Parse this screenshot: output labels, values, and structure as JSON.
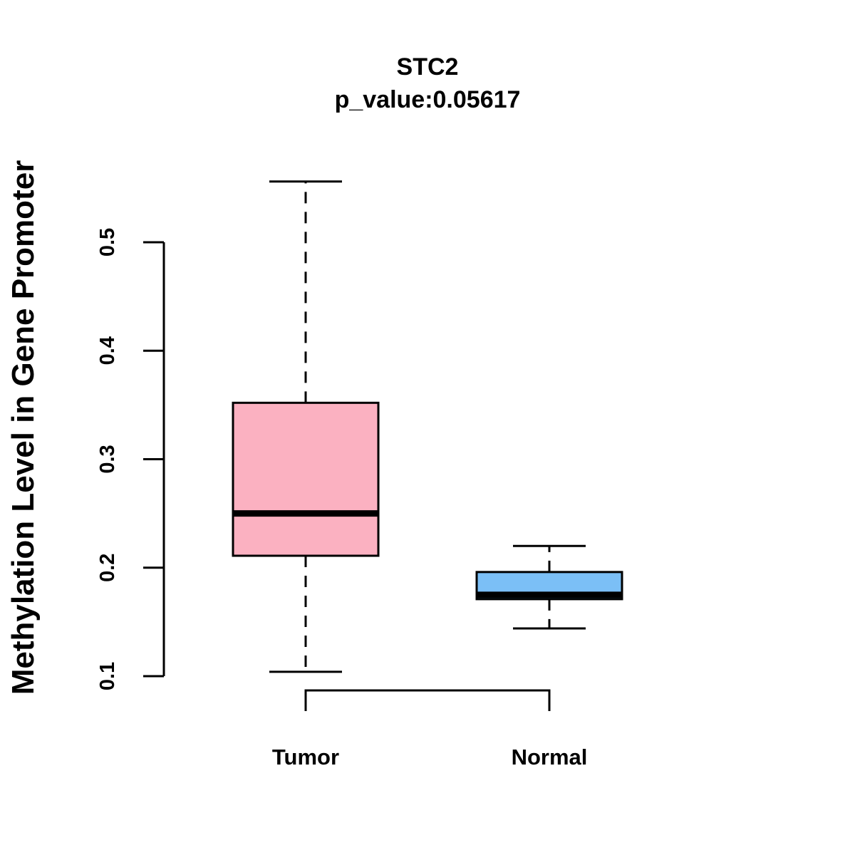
{
  "chart_data": {
    "type": "boxplot",
    "title": "STC2",
    "subtitle": "p_value:0.05617",
    "xlabel": "",
    "ylabel": "Methylation Level in Gene Promoter",
    "ylim": [
      0.1,
      0.5
    ],
    "yticks": [
      "0.1",
      "0.2",
      "0.3",
      "0.4",
      "0.5"
    ],
    "ytick_values": [
      0.1,
      0.2,
      0.3,
      0.4,
      0.5
    ],
    "grid": false,
    "categories": [
      "Tumor",
      "Normal"
    ],
    "series": [
      {
        "name": "Tumor",
        "color": "#FBB1C1",
        "whisker_low": 0.104,
        "q1": 0.211,
        "median": 0.25,
        "q3": 0.352,
        "whisker_high": 0.556
      },
      {
        "name": "Normal",
        "color": "#7BBFF6",
        "whisker_low": 0.144,
        "q1": 0.171,
        "median": 0.175,
        "q3": 0.196,
        "whisker_high": 0.22
      }
    ],
    "comparison_bracket": {
      "between": [
        "Tumor",
        "Normal"
      ]
    }
  }
}
